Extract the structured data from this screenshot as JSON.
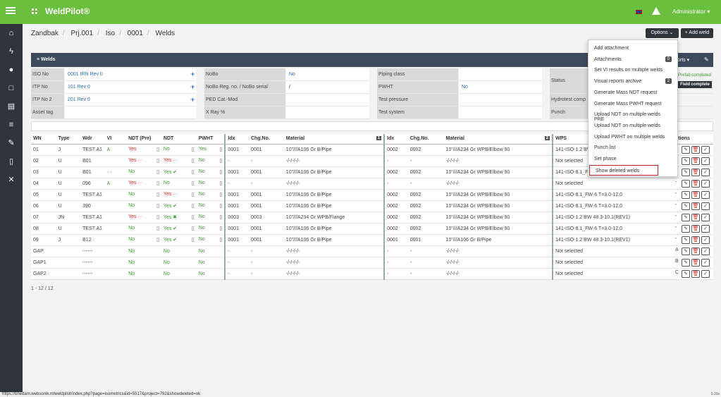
{
  "app": {
    "title": "WeldPilot®",
    "user": "Administrator ▾"
  },
  "breadcrumb": [
    "Zandbak",
    "Prj.001",
    "Iso",
    "0001",
    "Welds"
  ],
  "toolbar": {
    "options": "Options ⌄",
    "add_weld": "+ Add weld",
    "reports": "orts ▾"
  },
  "panel": {
    "title": "Welds"
  },
  "info": {
    "iso_no_label": "ISO No",
    "iso_no": "0001 IRN Rev 0",
    "itp_no_label": "ITP No",
    "itp_no": "101 Rev 0",
    "itp_no2_label": "ITP No 2",
    "itp_no2": "201 Rev 0",
    "asset_tag_label": "Asset tag",
    "nobo_label": "NoBo",
    "nobo": "No",
    "nobo_reg_label": "NoBo Reg. no. / NoBo serial",
    "nobo_reg": "/",
    "ped_label": "PED Cat.-Mod",
    "xray_label": "X Ray %",
    "piping_label": "Piping class",
    "pwht_label": "PWHT",
    "pwht": "No",
    "test_pressure_label": "Test pressure",
    "test_system_label": "Test system",
    "status_label": "Status",
    "prefab": "Prefab completed",
    "field": "Field complete",
    "hydro_label": "Hydrotest comp",
    "punch_label": "Punch"
  },
  "table": {
    "headers": [
      "WN",
      "Type",
      "Wdr",
      "VI",
      "NDT (Pre)",
      "NDT",
      "PWHT",
      "Idx",
      "Chg.No.",
      "Material",
      "Idx",
      "Chg.No.",
      "Material",
      "WPS",
      "ptions"
    ],
    "badge1": "1",
    "badge2": "2",
    "rows": [
      [
        "01",
        "J",
        "TEST A1",
        "A",
        "Yes",
        "No",
        "Yes",
        "0001",
        "0001",
        "10\"///A106 Gr B/Pipe",
        "0002",
        "0002",
        "10\"///A234 Gr WPB/Elbow 90",
        "141-ISO-1.2 BW 48.3-10.1(REV1)",
        "-"
      ],
      [
        "02",
        "U",
        "B01",
        "",
        "Yes ···",
        "Yes ···",
        "No",
        "-",
        "-",
        "-/-/-/-/-",
        "-",
        "-",
        "-/-/-/-/-",
        "Not selected",
        "-"
      ],
      [
        "03",
        "U",
        "B01",
        "···",
        "No",
        "Yes ✔",
        "No",
        "0001",
        "0001",
        "10\"///A106 Gr B/Pipe",
        "0002",
        "0002",
        "10\"///A234 Gr WPB/Elbow 90",
        "141-ISO-8.1_FW-6",
        "-"
      ],
      [
        "04",
        "U",
        "096",
        "A",
        "Yes ···",
        "No",
        "No",
        "-",
        "-",
        "-/-/-/-/-",
        "-",
        "-",
        "-/-/-/-/-",
        "Not selected",
        "-"
      ],
      [
        "05",
        "U",
        "TEST A1",
        "",
        "No",
        "Yes ···",
        "No",
        "0001",
        "0001",
        "10\"///A106 Gr B/Pipe",
        "0002",
        "0002",
        "10\"///A234 Gr WPB/Elbow 90",
        "141-ISO-8.1_FW-6 T=3.0-12.0",
        "-"
      ],
      [
        "06",
        "U",
        "390",
        "",
        "No",
        "Yes ✔",
        "No",
        "0001",
        "0001",
        "10\"///A106 Gr B/Pipe",
        "0002",
        "0002",
        "10\"///A234 Gr WPB/Elbow 90",
        "141-ISO-8.1_FW-6 T=3.0-12.0",
        "-"
      ],
      [
        "07",
        "JN",
        "TEST A1",
        "",
        "Yes ···",
        "Yes ✖",
        "No",
        "0003",
        "0003",
        "10\"///A234 Gr WPB/Flange",
        "0002",
        "0002",
        "10\"///A234 Gr WPB/Elbow 90",
        "141-ISO-1.2 BW 48.3-10.1(REV1)",
        "-"
      ],
      [
        "08",
        "U",
        "TEST A1",
        "",
        "No",
        "Yes ✔",
        "No",
        "0001",
        "0001",
        "10\"///A106 Gr B/Pipe",
        "0002",
        "0002",
        "10\"///A234 Gr WPB/Elbow 90",
        "141-ISO-8.1_FW-6 T=3.0-12.0",
        "-"
      ],
      [
        "09",
        "J",
        "B12",
        "",
        "No",
        "Yes ✔",
        "No",
        "0001",
        "0001",
        "10\"///A106 Gr B/Pipe",
        "0001",
        "0001",
        "10\"///A106 Gr B/Pipe",
        "141-ISO-1.2 BW 48.3-10.1(REV1)",
        "-"
      ],
      [
        "GAP",
        "",
        "------",
        "",
        "No",
        "No",
        "No",
        "-",
        "-",
        "-/-/-/-/-",
        "-",
        "-",
        "-/-/-/-/-",
        "Not selected",
        "A"
      ],
      [
        "GAP1",
        "",
        "------",
        "",
        "No",
        "No",
        "No",
        "-",
        "-",
        "-/-/-/-/-",
        "-",
        "-",
        "-/-/-/-/-",
        "Not selected",
        "B"
      ],
      [
        "GAP2",
        "",
        "------",
        "",
        "No",
        "No",
        "No",
        "-",
        "-",
        "-/-/-/-/-",
        "-",
        "-",
        "-/-/-/-/-",
        "Not selected",
        "C"
      ]
    ],
    "footer": "1 - 12 / 12"
  },
  "dropdown": [
    {
      "label": "Add attachment"
    },
    {
      "label": "Attachments",
      "badge": "0"
    },
    {
      "label": "Set VI results on multiple welds"
    },
    {
      "label": "Visual reports archive",
      "badge": "2"
    },
    {
      "label": "Generate Mass NDT request"
    },
    {
      "label": "Generate Mass PWHT request"
    },
    {
      "label": "Upload NDT on multiple welds PRE"
    },
    {
      "label": "Upload NDT on multiple welds"
    },
    {
      "label": "Upload PWHT on multiple welds"
    },
    {
      "label": "Punch list"
    },
    {
      "label": "Set phase"
    },
    {
      "label": "Show deleted welds"
    }
  ],
  "statusbar": "https://bnedam.websonik.nl/weldpilot/index.php?page=isometrics&id=5517&project=792&showdeleted=ok",
  "version": "0.33s"
}
